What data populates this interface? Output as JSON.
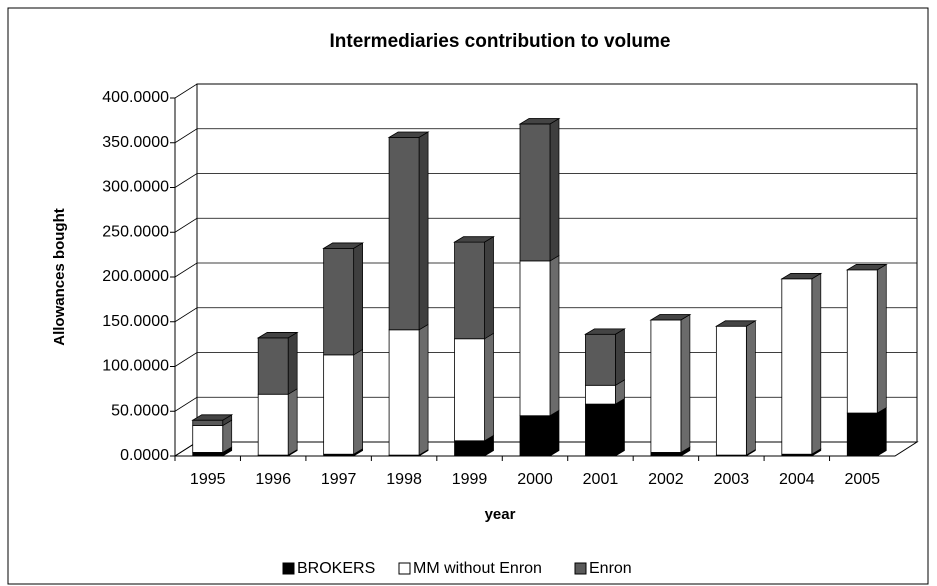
{
  "chart_data": {
    "type": "bar",
    "stacked": true,
    "title": "Intermediaries contribution to volume",
    "x_label": "year",
    "y_label": "Allowances bought",
    "categories": [
      "1995",
      "1996",
      "1997",
      "1998",
      "1999",
      "2000",
      "2001",
      "2002",
      "2003",
      "2004",
      "2005"
    ],
    "series": [
      {
        "name": "BROKERS",
        "color": "#000000",
        "values": [
          4,
          1,
          2,
          1,
          17,
          45,
          58,
          4,
          1,
          2,
          48
        ]
      },
      {
        "name": "MM without Enron",
        "color": "#ffffff",
        "values": [
          30,
          68,
          111,
          140,
          114,
          173,
          21,
          148,
          144,
          196,
          160
        ]
      },
      {
        "name": "Enron",
        "color": "#5a5a5a",
        "values": [
          6,
          63,
          119,
          215,
          108,
          153,
          57,
          0,
          0,
          0,
          0
        ]
      }
    ],
    "ylim": [
      0,
      400
    ],
    "yticks": [
      {
        "value": 0,
        "label": "0.0000"
      },
      {
        "value": 50,
        "label": "50.0000"
      },
      {
        "value": 100,
        "label": "100.0000"
      },
      {
        "value": 150,
        "label": "150.0000"
      },
      {
        "value": 200,
        "label": "200.0000"
      },
      {
        "value": 250,
        "label": "250.0000"
      },
      {
        "value": 300,
        "label": "300.0000"
      },
      {
        "value": 350,
        "label": "350.0000"
      },
      {
        "value": 400,
        "label": "400.0000"
      }
    ],
    "grid": true,
    "legend": "bottom"
  }
}
